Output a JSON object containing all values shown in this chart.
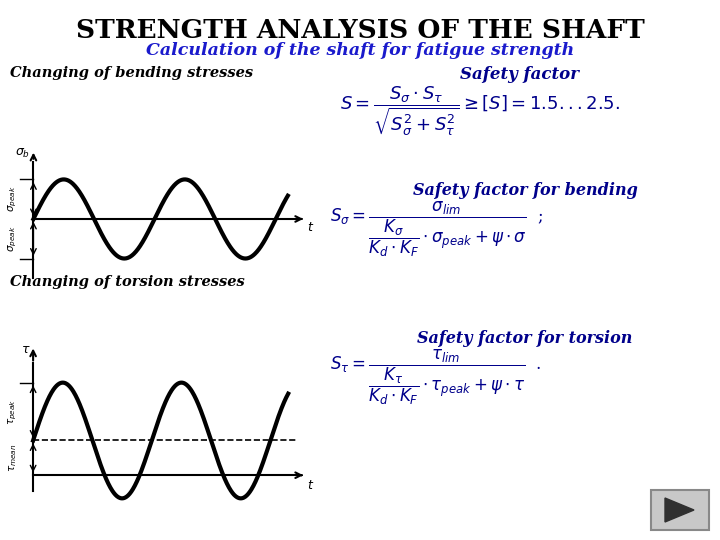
{
  "title": "STRENGTH ANALYSIS OF THE SHAFT",
  "subtitle": "Calculation of the shaft for fatigue strength",
  "title_color": "#000000",
  "subtitle_color": "#1a1aCC",
  "label_bending": "Changing of bending stresses",
  "label_torsion": "Changing of torsion stresses",
  "label_color": "#000000",
  "bg_color": "#FFFFFF",
  "formula_color": "#00008B",
  "wave_color": "#000000",
  "arrow_color": "#000000",
  "safety_factor_label": "Safety factor",
  "sfb_label": "Safety factor for bending",
  "sft_label": "Safety factor for torsion"
}
